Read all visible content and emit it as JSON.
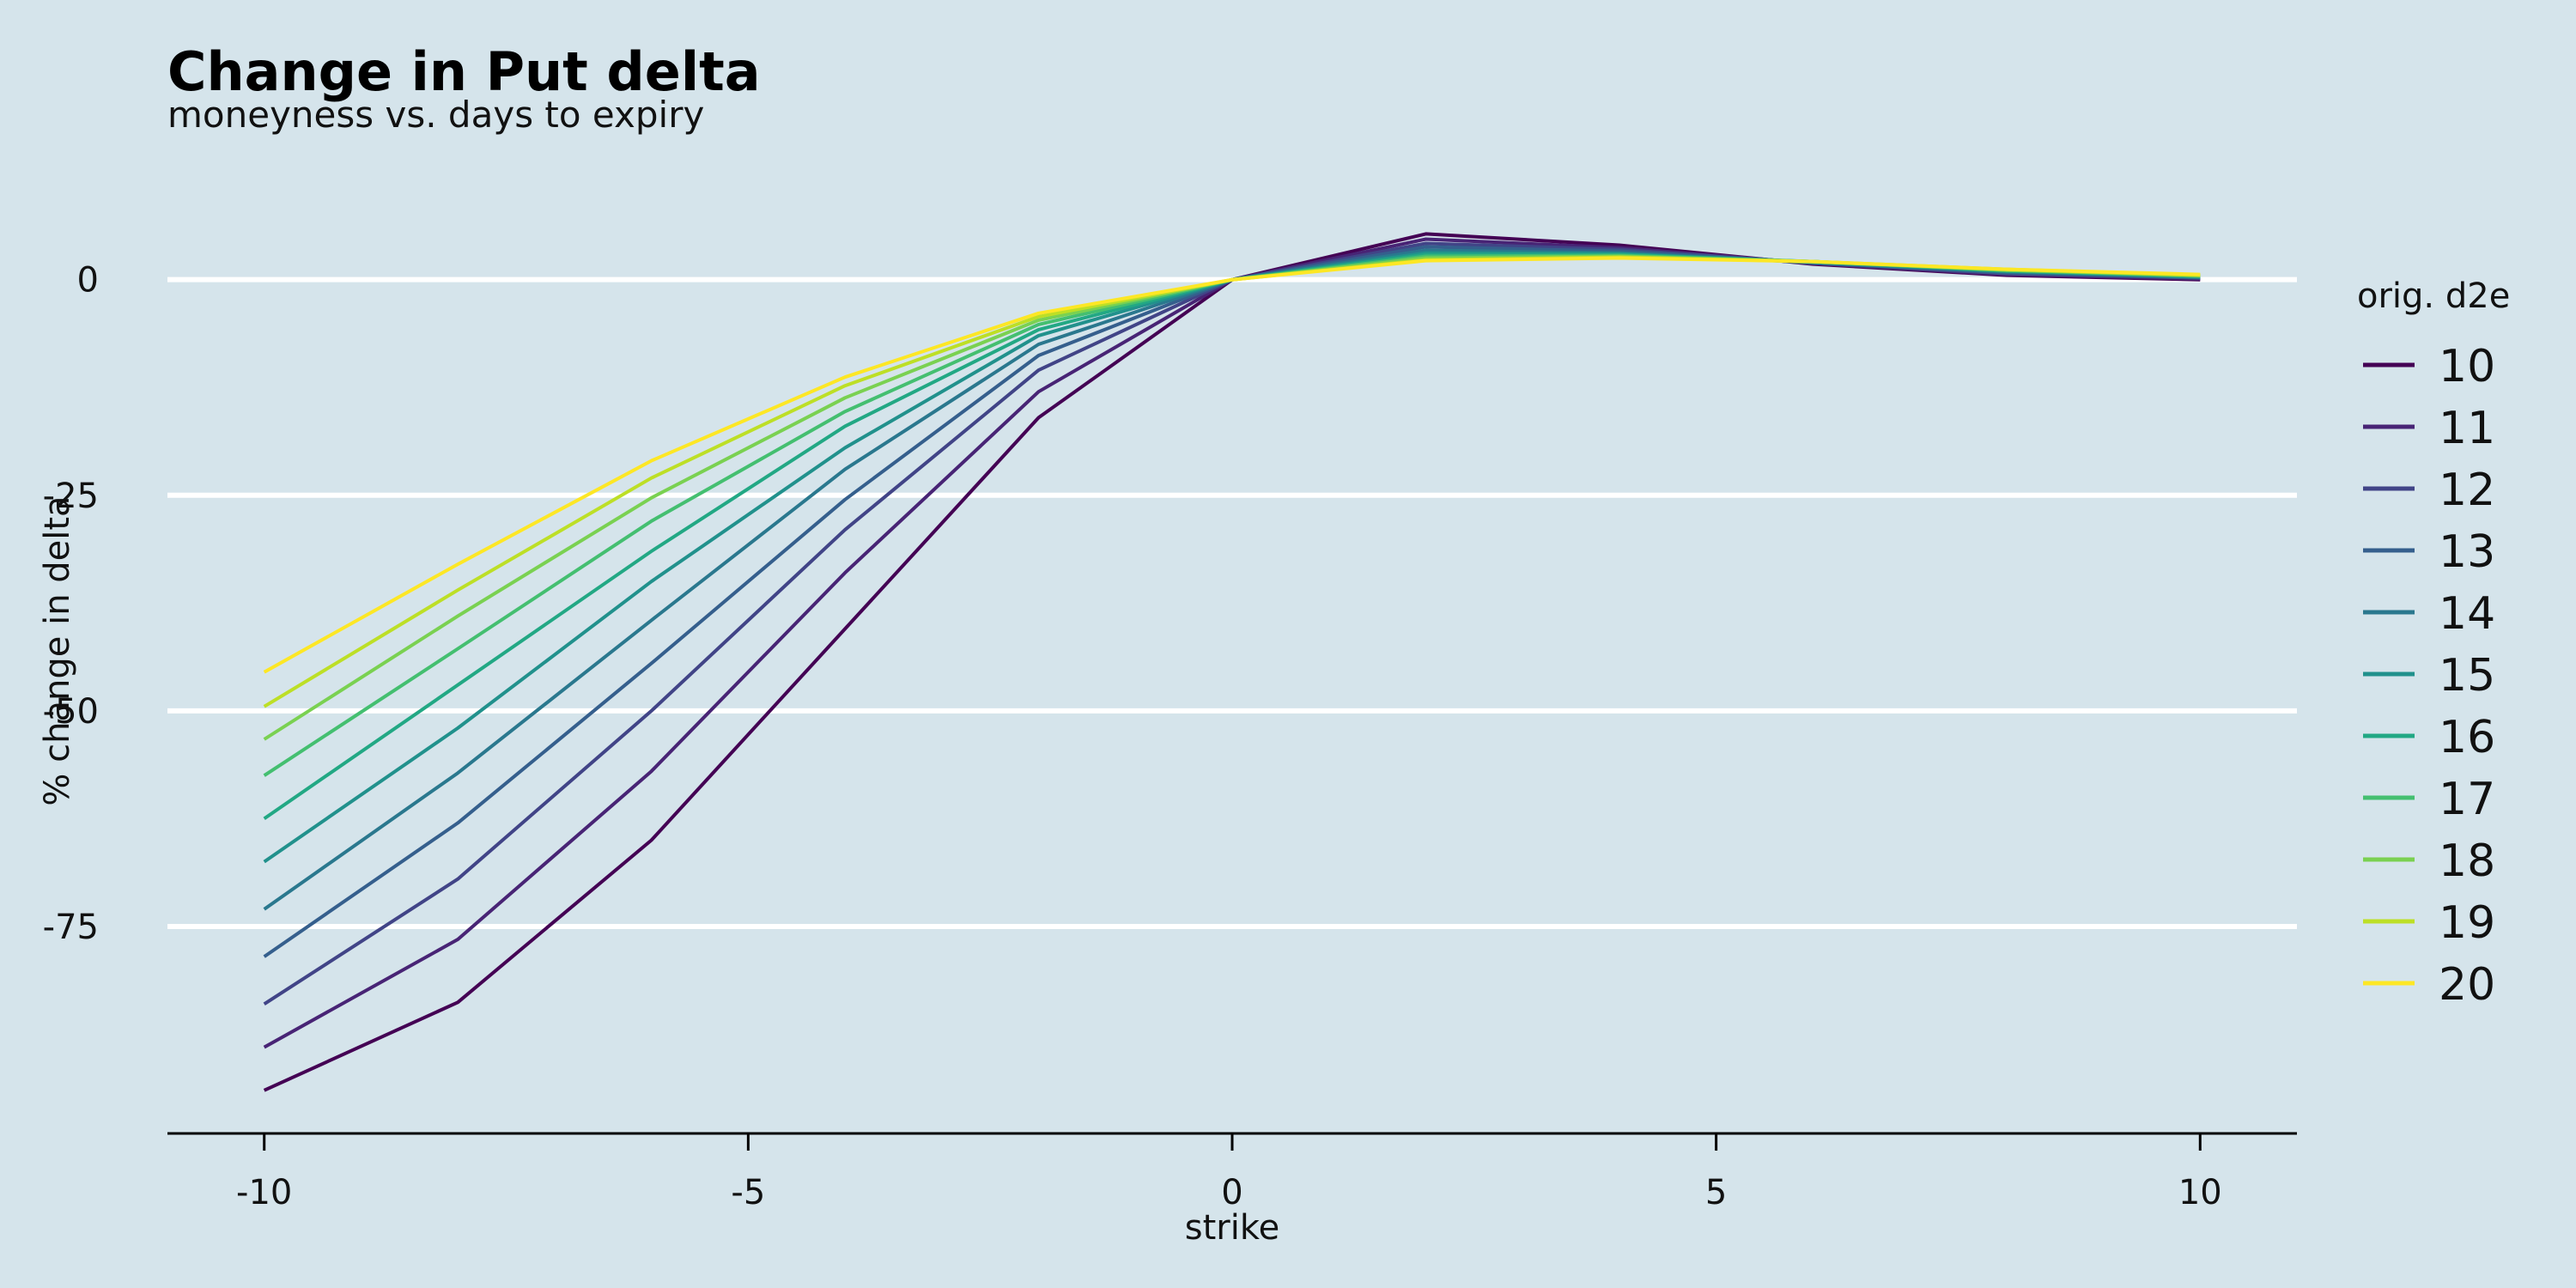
{
  "chart_data": {
    "type": "line",
    "title": "Change in Put delta",
    "subtitle": "moneyness vs. days to expiry",
    "xlabel": "strike",
    "ylabel": "% change in delta",
    "xlim": [
      -11,
      11
    ],
    "ylim": [
      -99,
      15
    ],
    "xticks": [
      -10,
      -5,
      0,
      5,
      10
    ],
    "yticks": [
      0,
      -25,
      -50,
      -75
    ],
    "grid": "horizontal major lines",
    "legend": {
      "title": "orig. d2e",
      "placement": "right"
    },
    "x": [
      -10,
      -8,
      -6,
      -4,
      -2,
      0,
      2,
      4,
      6,
      8,
      10
    ],
    "series": [
      {
        "name": "10",
        "color": "#440154",
        "values": [
          -94,
          -83.8,
          -65,
          -40.5,
          -16,
          0,
          5.3,
          4,
          1.8,
          0.5,
          0
        ]
      },
      {
        "name": "11",
        "color": "#482475",
        "values": [
          -89,
          -76.5,
          -57,
          -34,
          -13,
          0,
          4.7,
          3.7,
          1.9,
          0.6,
          0.1
        ]
      },
      {
        "name": "12",
        "color": "#414487",
        "values": [
          -84,
          -69.5,
          -50,
          -29,
          -10.5,
          0,
          4.2,
          3.5,
          1.9,
          0.7,
          0.2
        ]
      },
      {
        "name": "13",
        "color": "#355f8d",
        "values": [
          -78.5,
          -63,
          -44.5,
          -25.5,
          -8.8,
          0,
          3.8,
          3.3,
          2,
          0.8,
          0.2
        ]
      },
      {
        "name": "14",
        "color": "#2a788e",
        "values": [
          -73,
          -57.2,
          -39.5,
          -22,
          -7.5,
          0,
          3.4,
          3.1,
          2,
          0.9,
          0.3
        ]
      },
      {
        "name": "15",
        "color": "#21918c",
        "values": [
          -67.5,
          -52,
          -35,
          -19.5,
          -6.5,
          0,
          3.1,
          3,
          2,
          1,
          0.3
        ]
      },
      {
        "name": "16",
        "color": "#22a884",
        "values": [
          -62.5,
          -47,
          -31.5,
          -17,
          -5.8,
          0,
          2.9,
          2.9,
          2.1,
          1,
          0.4
        ]
      },
      {
        "name": "17",
        "color": "#44bf70",
        "values": [
          -57.5,
          -42.8,
          -28,
          -15.3,
          -5.2,
          0,
          2.7,
          2.8,
          2.1,
          1.1,
          0.4
        ]
      },
      {
        "name": "18",
        "color": "#7ad151",
        "values": [
          -53.3,
          -39,
          -25.3,
          -13.7,
          -4.7,
          0,
          2.5,
          2.7,
          2.1,
          1.1,
          0.5
        ]
      },
      {
        "name": "19",
        "color": "#bddf26",
        "values": [
          -49.5,
          -36,
          -23,
          -12.3,
          -4.3,
          0,
          2.3,
          2.6,
          2.1,
          1.2,
          0.5
        ]
      },
      {
        "name": "20",
        "color": "#fde725",
        "values": [
          -45.5,
          -33,
          -21,
          -11.3,
          -3.9,
          0,
          2.2,
          2.5,
          2.1,
          1.2,
          0.6
        ]
      }
    ]
  }
}
